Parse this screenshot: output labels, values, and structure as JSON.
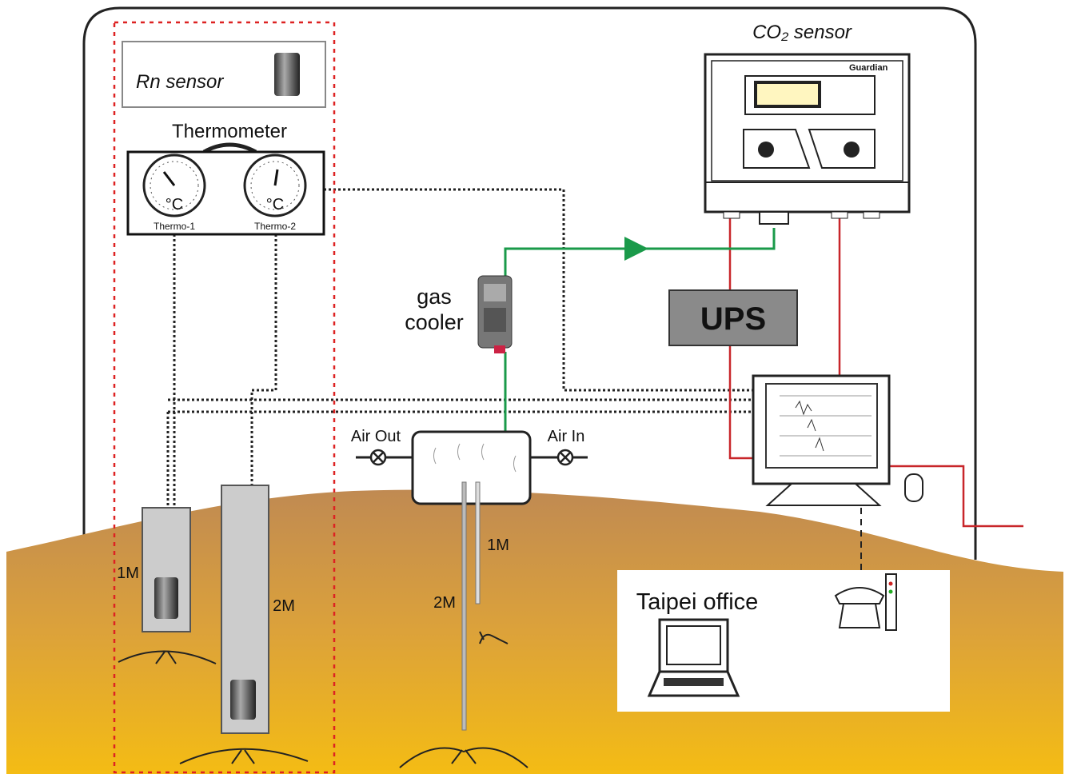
{
  "co2_sensor": {
    "title": "CO₂ sensor",
    "brand": "Guardian"
  },
  "rn_sensor": {
    "title": "Rn sensor"
  },
  "thermometer": {
    "title": "Thermometer",
    "gauges": [
      {
        "unit": "°C",
        "label": "Thermo-1"
      },
      {
        "unit": "°C",
        "label": "Thermo-2"
      }
    ]
  },
  "gas_cooler": {
    "lines": [
      "gas",
      "cooler"
    ]
  },
  "ups": {
    "label": "UPS"
  },
  "air_chamber": {
    "outlet": "Air Out",
    "inlet": "Air In"
  },
  "wells": {
    "rn_shallow_depth": "1M",
    "rn_deep_depth": "2M",
    "tube_shallow_depth": "1M",
    "tube_deep_depth": "2M"
  },
  "office": {
    "title": "Taipei office"
  }
}
